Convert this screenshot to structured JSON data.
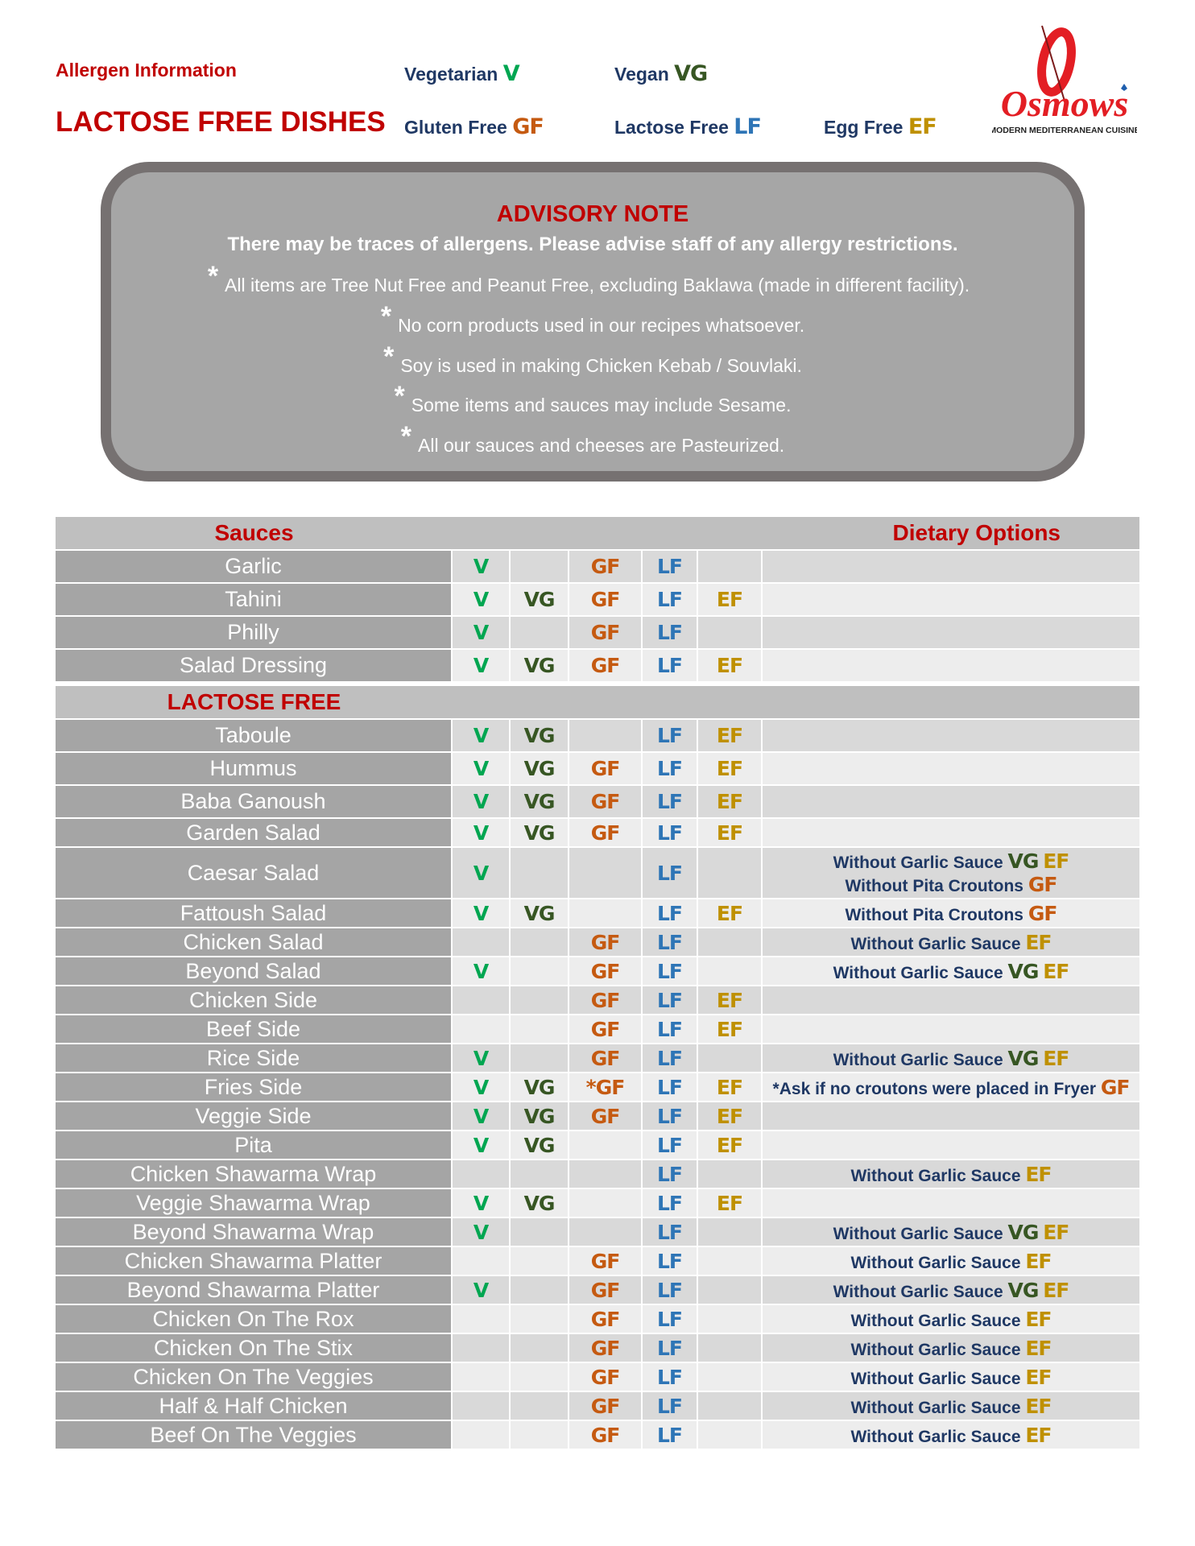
{
  "header": {
    "allergen_info": "Allergen Information",
    "title": "LACTOSE FREE DISHES",
    "legend": [
      {
        "label": "Vegetarian",
        "code": "V"
      },
      {
        "label": "Vegan",
        "code": "VG"
      },
      {
        "label": "Gluten Free",
        "code": "GF"
      },
      {
        "label": "Lactose Free",
        "code": "LF"
      },
      {
        "label": "Egg Free",
        "code": "EF"
      }
    ],
    "logo": {
      "name": "Osmow's",
      "tagline": "MODERN MEDITERRANEAN CUISINE"
    }
  },
  "advisory": {
    "title": "ADVISORY NOTE",
    "subtitle": "There may be traces of allergens. Please advise staff of any allergy restrictions.",
    "bullet_symbol": "*",
    "notes": [
      "All items are Tree Nut Free and Peanut Free, excluding Baklawa (made in different facility).",
      "No corn products used in our recipes whatsoever.",
      "Soy is used in making Chicken Kebab / Souvlaki.",
      "Some items and sauces may include Sesame.",
      "All our sauces and cheeses are Pasteurized."
    ]
  },
  "colors": {
    "V": "#00a651",
    "VG": "#375623",
    "GF": "#c55a11",
    "LF": "#2e75b6",
    "EF": "#bf9000",
    "heading": "#c00000",
    "text": "#1f3864"
  },
  "table": {
    "dietary_options_header": "Dietary Options",
    "sections": [
      {
        "title": "Sauces",
        "rows": [
          {
            "name": "Garlic",
            "codes": [
              "V",
              "",
              "GF",
              "LF",
              ""
            ],
            "options": []
          },
          {
            "name": "Tahini",
            "codes": [
              "V",
              "VG",
              "GF",
              "LF",
              "EF"
            ],
            "options": []
          },
          {
            "name": "Philly",
            "codes": [
              "V",
              "",
              "GF",
              "LF",
              ""
            ],
            "options": []
          },
          {
            "name": "Salad Dressing",
            "codes": [
              "V",
              "VG",
              "GF",
              "LF",
              "EF"
            ],
            "options": []
          }
        ]
      },
      {
        "title": "LACTOSE FREE",
        "rows": [
          {
            "name": "Taboule",
            "codes": [
              "V",
              "VG",
              "",
              "LF",
              "EF"
            ],
            "options": []
          },
          {
            "name": "Hummus",
            "codes": [
              "V",
              "VG",
              "GF",
              "LF",
              "EF"
            ],
            "options": []
          },
          {
            "name": "Baba Ganoush",
            "codes": [
              "V",
              "VG",
              "GF",
              "LF",
              "EF"
            ],
            "options": []
          },
          {
            "name": "Garden Salad",
            "codes": [
              "V",
              "VG",
              "GF",
              "LF",
              "EF"
            ],
            "options": []
          },
          {
            "name": "Caesar Salad",
            "codes": [
              "V",
              "",
              "",
              "LF",
              ""
            ],
            "options": [
              {
                "text": "Without Garlic Sauce",
                "codes": [
                  "VG",
                  "EF"
                ]
              },
              {
                "text": "Without Pita Croutons",
                "codes": [
                  "GF"
                ]
              }
            ]
          },
          {
            "name": "Fattoush Salad",
            "codes": [
              "V",
              "VG",
              "",
              "LF",
              "EF"
            ],
            "options": [
              {
                "text": "Without Pita Croutons",
                "codes": [
                  "GF"
                ]
              }
            ]
          },
          {
            "name": "Chicken Salad",
            "codes": [
              "",
              "",
              "GF",
              "LF",
              ""
            ],
            "options": [
              {
                "text": "Without Garlic Sauce",
                "codes": [
                  "EF"
                ]
              }
            ]
          },
          {
            "name": "Beyond Salad",
            "codes": [
              "V",
              "",
              "GF",
              "LF",
              ""
            ],
            "options": [
              {
                "text": "Without Garlic Sauce",
                "codes": [
                  "VG",
                  "EF"
                ]
              }
            ]
          },
          {
            "name": "Chicken Side",
            "codes": [
              "",
              "",
              "GF",
              "LF",
              "EF"
            ],
            "options": []
          },
          {
            "name": "Beef Side",
            "codes": [
              "",
              "",
              "GF",
              "LF",
              "EF"
            ],
            "options": []
          },
          {
            "name": "Rice Side",
            "codes": [
              "V",
              "",
              "GF",
              "LF",
              ""
            ],
            "options": [
              {
                "text": "Without Garlic Sauce",
                "codes": [
                  "VG",
                  "EF"
                ]
              }
            ]
          },
          {
            "name": "Fries Side",
            "codes": [
              "V",
              "VG",
              "*GF",
              "LF",
              "EF"
            ],
            "options": [
              {
                "text": "*Ask if no croutons were placed in Fryer",
                "codes": [
                  "GF"
                ]
              }
            ]
          },
          {
            "name": "Veggie Side",
            "codes": [
              "V",
              "VG",
              "GF",
              "LF",
              "EF"
            ],
            "options": []
          },
          {
            "name": "Pita",
            "codes": [
              "V",
              "VG",
              "",
              "LF",
              "EF"
            ],
            "options": []
          },
          {
            "name": "Chicken Shawarma Wrap",
            "codes": [
              "",
              "",
              "",
              "LF",
              ""
            ],
            "options": [
              {
                "text": "Without Garlic Sauce",
                "codes": [
                  "EF"
                ]
              }
            ]
          },
          {
            "name": "Veggie Shawarma Wrap",
            "codes": [
              "V",
              "VG",
              "",
              "LF",
              "EF"
            ],
            "options": []
          },
          {
            "name": "Beyond Shawarma Wrap",
            "codes": [
              "V",
              "",
              "",
              "LF",
              ""
            ],
            "options": [
              {
                "text": "Without Garlic Sauce",
                "codes": [
                  "VG",
                  "EF"
                ]
              }
            ]
          },
          {
            "name": "Chicken Shawarma Platter",
            "codes": [
              "",
              "",
              "GF",
              "LF",
              ""
            ],
            "options": [
              {
                "text": "Without Garlic Sauce",
                "codes": [
                  "EF"
                ]
              }
            ]
          },
          {
            "name": "Beyond Shawarma Platter",
            "codes": [
              "V",
              "",
              "GF",
              "LF",
              ""
            ],
            "options": [
              {
                "text": "Without Garlic Sauce",
                "codes": [
                  "VG",
                  "EF"
                ]
              }
            ]
          },
          {
            "name": "Chicken On The Rox",
            "codes": [
              "",
              "",
              "GF",
              "LF",
              ""
            ],
            "options": [
              {
                "text": "Without Garlic Sauce",
                "codes": [
                  "EF"
                ]
              }
            ]
          },
          {
            "name": "Chicken On The Stix",
            "codes": [
              "",
              "",
              "GF",
              "LF",
              ""
            ],
            "options": [
              {
                "text": "Without Garlic Sauce",
                "codes": [
                  "EF"
                ]
              }
            ]
          },
          {
            "name": "Chicken On The Veggies",
            "codes": [
              "",
              "",
              "GF",
              "LF",
              ""
            ],
            "options": [
              {
                "text": "Without Garlic Sauce",
                "codes": [
                  "EF"
                ]
              }
            ]
          },
          {
            "name": "Half & Half Chicken",
            "codes": [
              "",
              "",
              "GF",
              "LF",
              ""
            ],
            "options": [
              {
                "text": "Without Garlic Sauce",
                "codes": [
                  "EF"
                ]
              }
            ]
          },
          {
            "name": "Beef On The Veggies",
            "codes": [
              "",
              "",
              "GF",
              "LF",
              ""
            ],
            "options": [
              {
                "text": "Without Garlic Sauce",
                "codes": [
                  "EF"
                ]
              }
            ]
          }
        ]
      }
    ]
  }
}
